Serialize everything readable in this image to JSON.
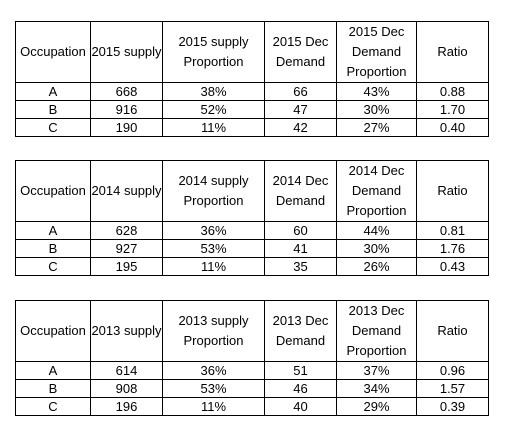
{
  "tables": [
    {
      "headers": [
        "Occupation",
        "2015 supply",
        "2015 supply Proportion",
        "2015 Dec Demand",
        "2015 Dec Demand Proportion",
        "Ratio"
      ],
      "rows": [
        [
          "A",
          "668",
          "38%",
          "66",
          "43%",
          "0.88"
        ],
        [
          "B",
          "916",
          "52%",
          "47",
          "30%",
          "1.70"
        ],
        [
          "C",
          "190",
          "11%",
          "42",
          "27%",
          "0.40"
        ]
      ]
    },
    {
      "headers": [
        "Occupation",
        "2014 supply",
        "2014 supply Proportion",
        "2014 Dec Demand",
        "2014 Dec Demand Proportion",
        "Ratio"
      ],
      "rows": [
        [
          "A",
          "628",
          "36%",
          "60",
          "44%",
          "0.81"
        ],
        [
          "B",
          "927",
          "53%",
          "41",
          "30%",
          "1.76"
        ],
        [
          "C",
          "195",
          "11%",
          "35",
          "26%",
          "0.43"
        ]
      ]
    },
    {
      "headers": [
        "Occupation",
        "2013 supply",
        "2013 supply Proportion",
        "2013 Dec Demand",
        "2013 Dec Demand Proportion",
        "Ratio"
      ],
      "rows": [
        [
          "A",
          "614",
          "36%",
          "51",
          "37%",
          "0.96"
        ],
        [
          "B",
          "908",
          "53%",
          "46",
          "34%",
          "1.57"
        ],
        [
          "C",
          "196",
          "11%",
          "40",
          "29%",
          "0.39"
        ]
      ]
    }
  ]
}
